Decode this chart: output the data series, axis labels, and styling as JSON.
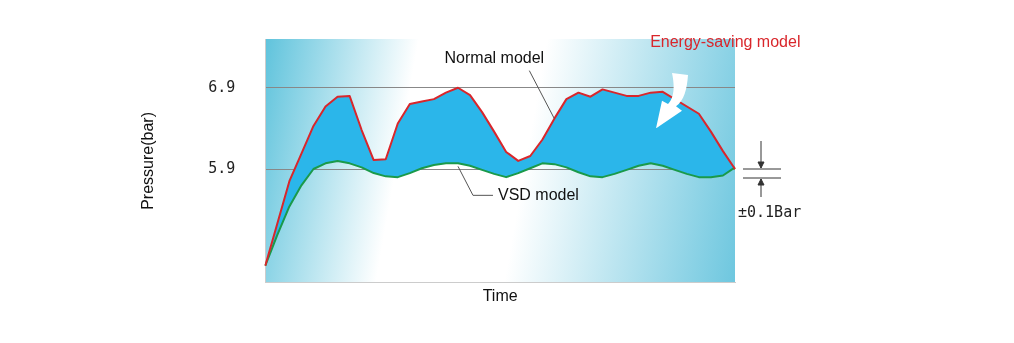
{
  "chart_data": {
    "type": "line",
    "xlabel": "Time",
    "ylabel": "Pressure(bar)",
    "categories": [
      null,
      null,
      null,
      null,
      null,
      null,
      null,
      null,
      null,
      null,
      null,
      null,
      null,
      null,
      null,
      null,
      null,
      null,
      null,
      null,
      null,
      null,
      null,
      null,
      null,
      null,
      null,
      null,
      null,
      null,
      null,
      null,
      null,
      null,
      null,
      null,
      null,
      null,
      null,
      null
    ],
    "ylim": [
      4.5,
      7.5
    ],
    "yticks": [
      5.9,
      6.9
    ],
    "tick_labels": "y",
    "grid": "y",
    "legend": false,
    "marker": "none",
    "series": [
      {
        "name": "Normal model",
        "type": "area",
        "color": "#2bb6ea",
        "values": [
          4.71,
          5.23,
          5.75,
          6.09,
          6.43,
          6.67,
          6.79,
          6.8,
          6.38,
          6.01,
          6.02,
          6.46,
          6.7,
          6.73,
          6.76,
          6.84,
          6.9,
          6.81,
          6.6,
          6.36,
          6.11,
          6.0,
          6.06,
          6.26,
          6.52,
          6.76,
          6.84,
          6.79,
          6.88,
          6.84,
          6.8,
          6.8,
          6.84,
          6.85,
          null,
          null,
          6.58,
          6.36,
          6.12,
          5.9
        ]
      },
      {
        "name": "VSD model",
        "type": "line",
        "color": "#1a9a4a",
        "values": [
          4.71,
          5.09,
          5.44,
          5.7,
          5.9,
          5.97,
          6.0,
          5.97,
          5.92,
          5.85,
          5.81,
          5.8,
          5.85,
          5.91,
          5.95,
          5.97,
          5.97,
          5.94,
          5.89,
          5.84,
          5.8,
          5.85,
          5.91,
          5.97,
          5.96,
          5.92,
          5.86,
          5.81,
          5.8,
          5.84,
          5.89,
          5.94,
          5.97,
          5.94,
          5.89,
          5.84,
          5.8,
          5.8,
          5.82,
          5.92
        ]
      }
    ],
    "annotations": [
      "Energy-saving model",
      "±0.1Bar"
    ]
  }
}
